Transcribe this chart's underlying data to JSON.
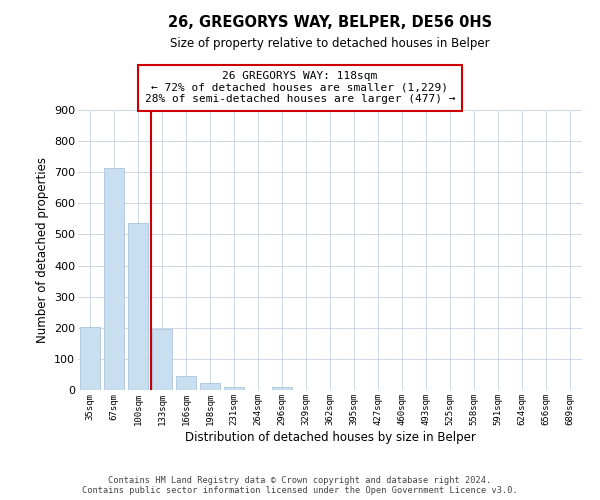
{
  "title": "26, GREGORYS WAY, BELPER, DE56 0HS",
  "subtitle": "Size of property relative to detached houses in Belper",
  "xlabel": "Distribution of detached houses by size in Belper",
  "ylabel": "Number of detached properties",
  "bar_labels": [
    "35sqm",
    "67sqm",
    "100sqm",
    "133sqm",
    "166sqm",
    "198sqm",
    "231sqm",
    "264sqm",
    "296sqm",
    "329sqm",
    "362sqm",
    "395sqm",
    "427sqm",
    "460sqm",
    "493sqm",
    "525sqm",
    "558sqm",
    "591sqm",
    "624sqm",
    "656sqm",
    "689sqm"
  ],
  "bar_values": [
    202,
    714,
    538,
    195,
    46,
    22,
    10,
    0,
    10,
    0,
    0,
    0,
    0,
    0,
    0,
    0,
    0,
    0,
    0,
    0,
    0
  ],
  "bar_color": "#c8dff0",
  "bar_edge_color": "#a0bcd8",
  "vline_color": "#cc0000",
  "vline_x_index": 2.55,
  "ylim": [
    0,
    900
  ],
  "yticks": [
    0,
    100,
    200,
    300,
    400,
    500,
    600,
    700,
    800,
    900
  ],
  "annotation_title": "26 GREGORYS WAY: 118sqm",
  "annotation_line1": "← 72% of detached houses are smaller (1,229)",
  "annotation_line2": "28% of semi-detached houses are larger (477) →",
  "annotation_box_color": "#ffffff",
  "annotation_box_edge": "#cc0000",
  "footer1": "Contains HM Land Registry data © Crown copyright and database right 2024.",
  "footer2": "Contains public sector information licensed under the Open Government Licence v3.0.",
  "background_color": "#ffffff",
  "grid_color": "#ccd8e8"
}
